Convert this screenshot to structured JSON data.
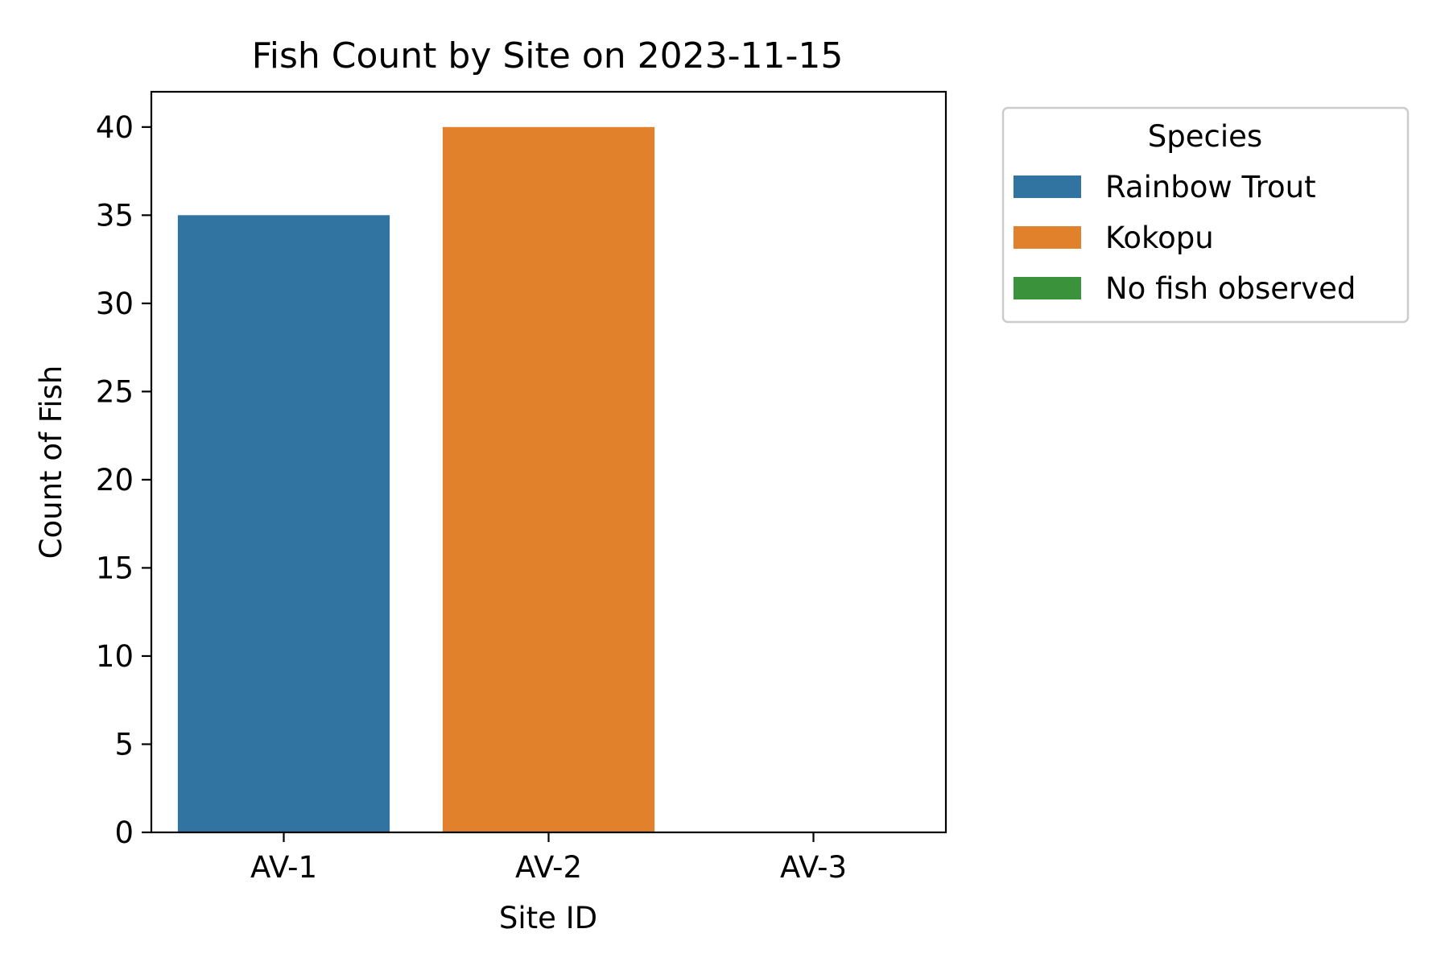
{
  "chart_data": {
    "type": "bar",
    "title": "Fish Count by Site on 2023-11-15",
    "xlabel": "Site ID",
    "ylabel": "Count of Fish",
    "categories": [
      "AV-1",
      "AV-2",
      "AV-3"
    ],
    "values": [
      35,
      40,
      0
    ],
    "bar_species": [
      "Rainbow Trout",
      "Kokopu",
      "No fish observed"
    ],
    "ylim": [
      0,
      42
    ],
    "yticks": [
      0,
      5,
      10,
      15,
      20,
      25,
      30,
      35,
      40
    ],
    "grid": false,
    "legend": {
      "title": "Species",
      "placement": "outside-top-right",
      "entries": [
        {
          "label": "Rainbow Trout",
          "color": "#3274a1"
        },
        {
          "label": "Kokopu",
          "color": "#e1812c"
        },
        {
          "label": "No fish observed",
          "color": "#3a923a"
        }
      ]
    }
  }
}
